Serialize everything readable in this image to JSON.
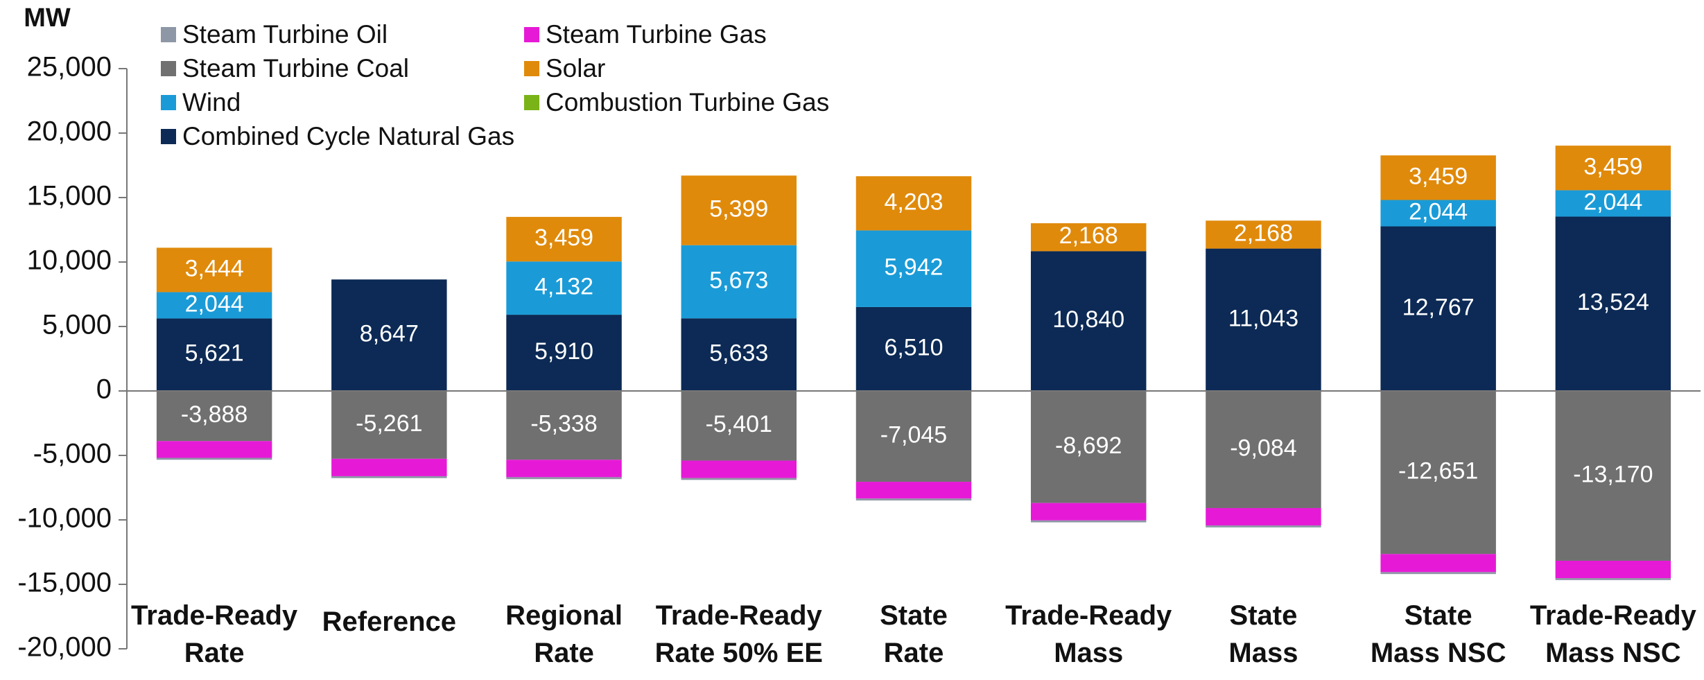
{
  "chart_data": {
    "type": "stacked-bar",
    "ylabel": "MW",
    "categories": [
      "Trade-Ready\nRate",
      "Reference",
      "Regional\nRate",
      "Trade-Ready\nRate 50% EE",
      "State\nRate",
      "Trade-Ready\nMass",
      "State\nMass",
      "State\nMass NSC",
      "Trade-Ready\nMass NSC"
    ],
    "series": [
      {
        "name": "Steam Turbine Oil",
        "color": "#8e97a6",
        "values": [
          -150,
          -150,
          -150,
          -150,
          -150,
          -150,
          -150,
          -150,
          -150
        ]
      },
      {
        "name": "Steam Turbine Gas",
        "color": "#e61ad6",
        "values": [
          -1300,
          -1350,
          -1350,
          -1350,
          -1300,
          -1350,
          -1350,
          -1400,
          -1350
        ]
      },
      {
        "name": "Steam Turbine Coal",
        "color": "#707070",
        "values": [
          -3888,
          -5261,
          -5338,
          -5401,
          -7045,
          -8692,
          -9084,
          -12651,
          -13170
        ],
        "value_labels": [
          "-3,888",
          "-5,261",
          "-5,338",
          "-5,401",
          "-7,045",
          "-8,692",
          "-9,084",
          "-12,651",
          "-13,170"
        ]
      },
      {
        "name": "Solar",
        "color": "#e08a0b",
        "values": [
          3444,
          null,
          3459,
          5399,
          4203,
          2168,
          2168,
          3459,
          3459
        ],
        "value_labels": [
          "3,444",
          null,
          "3,459",
          "5,399",
          "4,203",
          "2,168",
          "2,168",
          "3,459",
          "3,459"
        ]
      },
      {
        "name": "Wind",
        "color": "#1a9bd7",
        "values": [
          2044,
          null,
          4132,
          5673,
          5942,
          null,
          null,
          2044,
          2044
        ],
        "value_labels": [
          "2,044",
          null,
          "4,132",
          "5,673",
          "5,942",
          null,
          null,
          "2,044",
          "2,044"
        ]
      },
      {
        "name": "Combustion Turbine Gas",
        "color": "#7ab317",
        "values": [
          0,
          0,
          0,
          0,
          0,
          0,
          0,
          0,
          0
        ]
      },
      {
        "name": "Combined Cycle Natural Gas",
        "color": "#0c2a55",
        "values": [
          5621,
          8647,
          5910,
          5633,
          6510,
          10840,
          11043,
          12767,
          13524
        ],
        "value_labels": [
          "5,621",
          "8,647",
          "5,910",
          "5,633",
          "6,510",
          "10,840",
          "11,043",
          "12,767",
          "13,524"
        ]
      }
    ],
    "ylim": [
      -20000,
      25000
    ],
    "yticks": [
      {
        "value": -20000,
        "label": "-20,000"
      },
      {
        "value": -15000,
        "label": "-15,000"
      },
      {
        "value": -10000,
        "label": "-10,000"
      },
      {
        "value": -5000,
        "label": "-5,000"
      },
      0,
      {
        "value": 5000,
        "label": "5,000"
      },
      {
        "value": 10000,
        "label": "10,000"
      },
      {
        "value": 15000,
        "label": "15,000"
      },
      {
        "value": 20000,
        "label": "20,000"
      },
      {
        "value": 25000,
        "label": "25,000"
      }
    ]
  }
}
